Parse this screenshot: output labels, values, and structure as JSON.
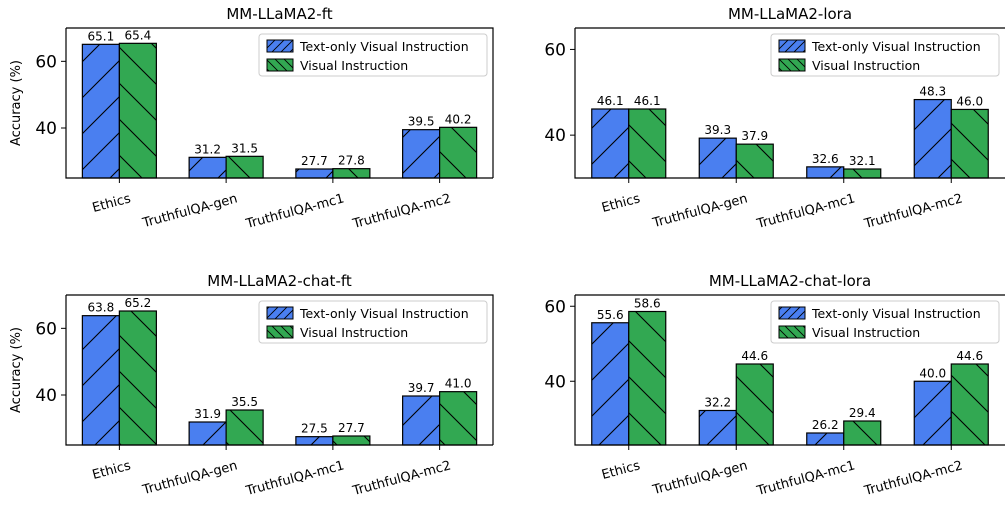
{
  "colors": {
    "text_only": "#4a7ff0",
    "visual": "#32a852",
    "edge": "#000000"
  },
  "chart_data": [
    {
      "type": "bar",
      "title": "MM-LLaMA2-ft",
      "ylabel": "Accuracy (%)",
      "yticks": [
        40,
        60
      ],
      "ylim": [
        25,
        70
      ],
      "categories": [
        "Ethics",
        "TruthfulQA-gen",
        "TruthfulQA-mc1",
        "TruthfulQA-mc2"
      ],
      "series": [
        {
          "name": "Text-only Visual Instruction",
          "values": [
            65.1,
            31.2,
            27.7,
            39.5
          ],
          "labels": [
            "65.1",
            "31.2",
            "27.7",
            "39.5"
          ]
        },
        {
          "name": "Visual Instruction",
          "values": [
            65.4,
            31.5,
            27.8,
            40.2
          ],
          "labels": [
            "65.4",
            "31.5",
            "27.8",
            "40.2"
          ]
        }
      ],
      "legend": "top-right"
    },
    {
      "type": "bar",
      "title": "MM-LLaMA2-lora",
      "ylabel": "",
      "yticks": [
        40,
        60
      ],
      "ylim": [
        30,
        65
      ],
      "categories": [
        "Ethics",
        "TruthfulQA-gen",
        "TruthfulQA-mc1",
        "TruthfulQA-mc2"
      ],
      "series": [
        {
          "name": "Text-only Visual Instruction",
          "values": [
            46.1,
            39.3,
            32.6,
            48.3
          ],
          "labels": [
            "46.1",
            "39.3",
            "32.6",
            "48.3"
          ]
        },
        {
          "name": "Visual Instruction",
          "values": [
            46.1,
            37.9,
            32.1,
            46.0
          ],
          "labels": [
            "46.1",
            "37.9",
            "32.1",
            "46.0"
          ]
        }
      ],
      "legend": "top-right"
    },
    {
      "type": "bar",
      "title": "MM-LLaMA2-chat-ft",
      "ylabel": "Accuracy (%)",
      "yticks": [
        40,
        60
      ],
      "ylim": [
        25,
        70
      ],
      "categories": [
        "Ethics",
        "TruthfulQA-gen",
        "TruthfulQA-mc1",
        "TruthfulQA-mc2"
      ],
      "series": [
        {
          "name": "Text-only Visual Instruction",
          "values": [
            63.8,
            31.9,
            27.5,
            39.7
          ],
          "labels": [
            "63.8",
            "31.9",
            "27.5",
            "39.7"
          ]
        },
        {
          "name": "Visual Instruction",
          "values": [
            65.2,
            35.5,
            27.7,
            41.0
          ],
          "labels": [
            "65.2",
            "35.5",
            "27.7",
            "41.0"
          ]
        }
      ],
      "legend": "top-right"
    },
    {
      "type": "bar",
      "title": "MM-LLaMA2-chat-lora",
      "ylabel": "",
      "yticks": [
        40,
        60
      ],
      "ylim": [
        23,
        63
      ],
      "categories": [
        "Ethics",
        "TruthfulQA-gen",
        "TruthfulQA-mc1",
        "TruthfulQA-mc2"
      ],
      "series": [
        {
          "name": "Text-only Visual Instruction",
          "values": [
            55.6,
            32.2,
            26.2,
            40.0
          ],
          "labels": [
            "55.6",
            "32.2",
            "26.2",
            "40.0"
          ]
        },
        {
          "name": "Visual Instruction",
          "values": [
            58.6,
            44.6,
            29.4,
            44.6
          ],
          "labels": [
            "58.6",
            "44.6",
            "29.4",
            "44.6"
          ]
        }
      ],
      "legend": "top-right"
    }
  ]
}
